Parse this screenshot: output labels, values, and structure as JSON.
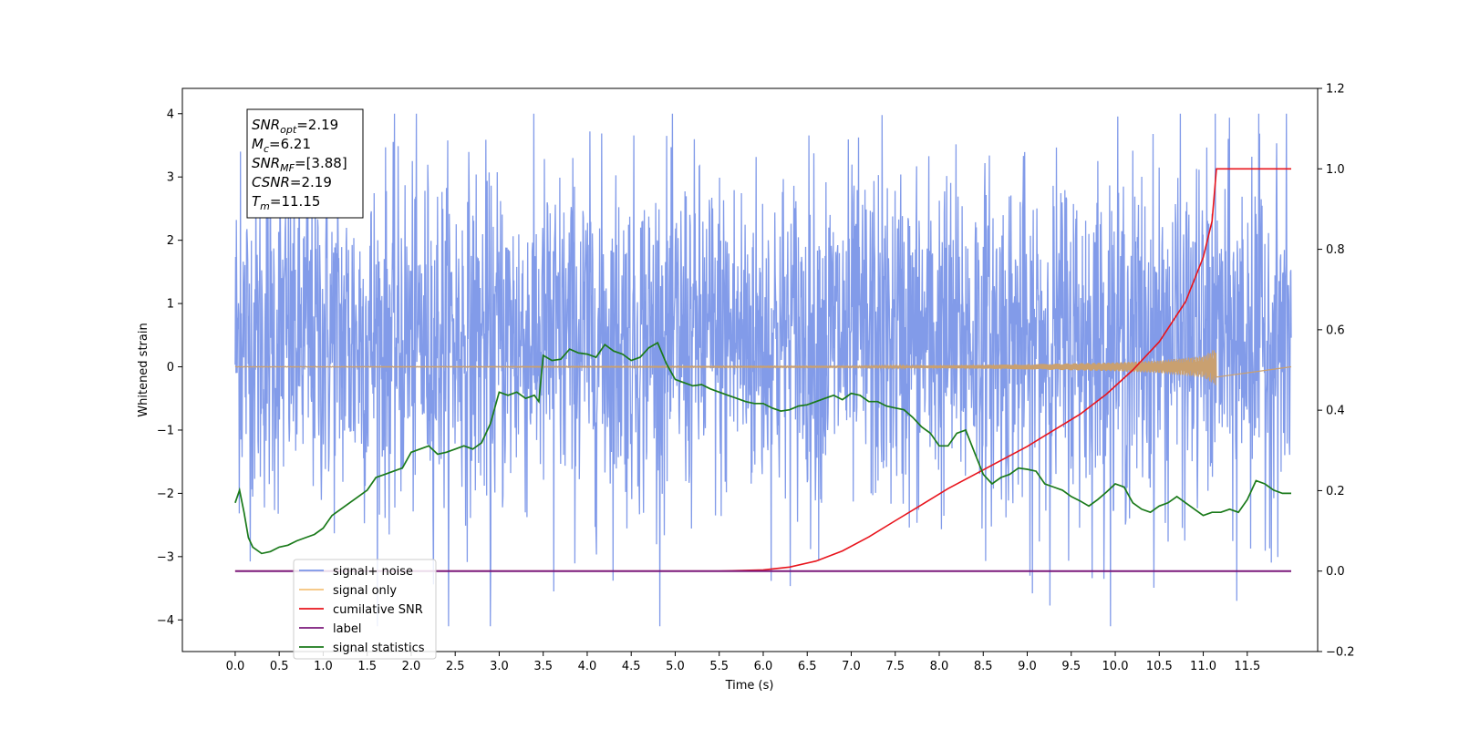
{
  "chart_data": {
    "type": "line",
    "xlabel": "Time (s)",
    "ylabel": "Whitened strain",
    "xlim": [
      -0.6,
      12.3
    ],
    "ylim": [
      -4.5,
      4.4
    ],
    "y2lim": [
      -0.2,
      1.2
    ],
    "x_ticks": [
      0.0,
      0.5,
      1.0,
      1.5,
      2.0,
      2.5,
      3.0,
      3.5,
      4.0,
      4.5,
      5.0,
      5.5,
      6.0,
      6.5,
      7.0,
      7.5,
      8.0,
      8.5,
      9.0,
      9.5,
      10.0,
      10.5,
      11.0,
      11.5
    ],
    "x_tick_labels": [
      "0.0",
      "0.5",
      "1.0",
      "1.5",
      "2.0",
      "2.5",
      "3.0",
      "3.5",
      "4.0",
      "4.5",
      "5.0",
      "5.5",
      "6.0",
      "6.5",
      "7.0",
      "7.5",
      "8.0",
      "8.5",
      "9.0",
      "9.5",
      "10.0",
      "10.5",
      "11.0",
      "11.5"
    ],
    "y_ticks": [
      -4,
      -3,
      -2,
      -1,
      0,
      1,
      2,
      3,
      4
    ],
    "y_tick_labels": [
      "−4",
      "−3",
      "−2",
      "−1",
      "0",
      "1",
      "2",
      "3",
      "4"
    ],
    "y2_ticks": [
      -0.2,
      0.0,
      0.2,
      0.4,
      0.6,
      0.8,
      1.0,
      1.2
    ],
    "y2_tick_labels": [
      "−0.2",
      "0.0",
      "0.2",
      "0.4",
      "0.6",
      "0.8",
      "1.0",
      "1.2"
    ],
    "grid": false,
    "legend_placement": "lower-left",
    "annotation": {
      "lines": [
        {
          "base": "SNR",
          "sub": "opt",
          "rest": "=2.19"
        },
        {
          "base": "M",
          "sub": "c",
          "rest": "=6.21"
        },
        {
          "base": "SNR",
          "sub": "MF",
          "rest": "=[3.88]"
        },
        {
          "base": "CSNR",
          "sub": "",
          "rest": "=2.19"
        },
        {
          "base": "T",
          "sub": "m",
          "rest": "=11.15"
        }
      ]
    },
    "series": [
      {
        "name": "signal+ noise",
        "color": "#7b96e8",
        "axis": "left",
        "x_range": [
          0.0,
          12.0
        ],
        "typical_range": [
          -1.8,
          2.5
        ],
        "min": -4.1,
        "max": 4.0,
        "spikes": [
          {
            "x": 0.06,
            "y": 3.4
          },
          {
            "x": 4.03,
            "y": 3.72
          },
          {
            "x": 7.35,
            "y": 3.98
          },
          {
            "x": 11.55,
            "y": 3.32
          },
          {
            "x": 2.9,
            "y": -4.1
          },
          {
            "x": 3.62,
            "y": -3.55
          },
          {
            "x": 11.38,
            "y": -3.7
          },
          {
            "x": 9.03,
            "y": -3.3
          }
        ]
      },
      {
        "name": "signal only",
        "color": "#f5c27a",
        "axis": "left",
        "envelope": {
          "x": [
            0,
            7,
            8,
            9,
            10,
            10.5,
            11.0,
            11.15
          ],
          "amp": [
            0.005,
            0.01,
            0.02,
            0.04,
            0.07,
            0.1,
            0.17,
            0.3
          ]
        }
      },
      {
        "name": "cumilative SNR",
        "color": "#e8141c",
        "axis": "right",
        "x": [
          0.0,
          5.5,
          6.0,
          6.3,
          6.6,
          6.9,
          7.2,
          7.5,
          7.8,
          8.1,
          8.4,
          8.7,
          9.0,
          9.3,
          9.6,
          9.9,
          10.2,
          10.5,
          10.8,
          11.0,
          11.1,
          11.15,
          12.0
        ],
        "values": [
          0.0,
          0.0,
          0.003,
          0.01,
          0.025,
          0.05,
          0.085,
          0.125,
          0.165,
          0.205,
          0.24,
          0.275,
          0.31,
          0.35,
          0.39,
          0.44,
          0.5,
          0.57,
          0.67,
          0.78,
          0.87,
          1.0,
          1.0
        ]
      },
      {
        "name": "label",
        "color": "#7b1a7b",
        "axis": "right",
        "x": [
          0.0,
          12.0
        ],
        "values": [
          0.0,
          0.0
        ]
      },
      {
        "name": "signal statistics",
        "color": "#1a7a1a",
        "axis": "left",
        "x": [
          0.0,
          0.05,
          0.1,
          0.15,
          0.2,
          0.3,
          0.4,
          0.5,
          0.6,
          0.7,
          0.8,
          0.9,
          1.0,
          1.1,
          1.2,
          1.3,
          1.4,
          1.5,
          1.6,
          1.7,
          1.8,
          1.9,
          2.0,
          2.1,
          2.2,
          2.3,
          2.4,
          2.5,
          2.6,
          2.7,
          2.8,
          2.9,
          3.0,
          3.1,
          3.2,
          3.3,
          3.4,
          3.45,
          3.5,
          3.6,
          3.7,
          3.8,
          3.9,
          4.0,
          4.1,
          4.2,
          4.3,
          4.4,
          4.5,
          4.6,
          4.7,
          4.8,
          4.9,
          5.0,
          5.1,
          5.2,
          5.3,
          5.4,
          5.5,
          5.6,
          5.7,
          5.8,
          5.9,
          6.0,
          6.1,
          6.2,
          6.3,
          6.4,
          6.5,
          6.6,
          6.7,
          6.8,
          6.9,
          7.0,
          7.1,
          7.2,
          7.3,
          7.4,
          7.5,
          7.6,
          7.7,
          7.8,
          7.9,
          8.0,
          8.1,
          8.2,
          8.3,
          8.4,
          8.5,
          8.6,
          8.7,
          8.8,
          8.9,
          9.0,
          9.1,
          9.2,
          9.3,
          9.4,
          9.5,
          9.6,
          9.7,
          9.8,
          9.9,
          10.0,
          10.1,
          10.2,
          10.3,
          10.4,
          10.5,
          10.6,
          10.7,
          10.8,
          10.9,
          11.0,
          11.1,
          11.2,
          11.3,
          11.4,
          11.5,
          11.6,
          11.7,
          11.8,
          11.9,
          12.0
        ],
        "values": [
          -2.15,
          -1.95,
          -2.3,
          -2.7,
          -2.85,
          -2.95,
          -2.92,
          -2.85,
          -2.82,
          -2.75,
          -2.7,
          -2.65,
          -2.55,
          -2.35,
          -2.25,
          -2.15,
          -2.05,
          -1.95,
          -1.75,
          -1.7,
          -1.65,
          -1.6,
          -1.35,
          -1.3,
          -1.25,
          -1.38,
          -1.35,
          -1.3,
          -1.25,
          -1.3,
          -1.2,
          -0.9,
          -0.4,
          -0.45,
          -0.4,
          -0.5,
          -0.45,
          -0.55,
          0.18,
          0.1,
          0.12,
          0.28,
          0.22,
          0.2,
          0.15,
          0.35,
          0.25,
          0.2,
          0.1,
          0.15,
          0.3,
          0.38,
          0.05,
          -0.2,
          -0.25,
          -0.3,
          -0.28,
          -0.35,
          -0.4,
          -0.45,
          -0.5,
          -0.55,
          -0.58,
          -0.58,
          -0.65,
          -0.7,
          -0.68,
          -0.62,
          -0.6,
          -0.55,
          -0.5,
          -0.45,
          -0.52,
          -0.42,
          -0.45,
          -0.55,
          -0.55,
          -0.62,
          -0.65,
          -0.68,
          -0.8,
          -0.95,
          -1.05,
          -1.25,
          -1.25,
          -1.05,
          -1.0,
          -1.35,
          -1.7,
          -1.85,
          -1.75,
          -1.7,
          -1.6,
          -1.62,
          -1.65,
          -1.85,
          -1.9,
          -1.95,
          -2.05,
          -2.12,
          -2.2,
          -2.1,
          -1.98,
          -1.85,
          -1.9,
          -2.15,
          -2.25,
          -2.3,
          -2.2,
          -2.15,
          -2.05,
          -2.15,
          -2.25,
          -2.35,
          -2.3,
          -2.3,
          -2.25,
          -2.3,
          -2.1,
          -1.8,
          -1.85,
          -1.95,
          -2.0,
          -2.0
        ]
      }
    ]
  }
}
